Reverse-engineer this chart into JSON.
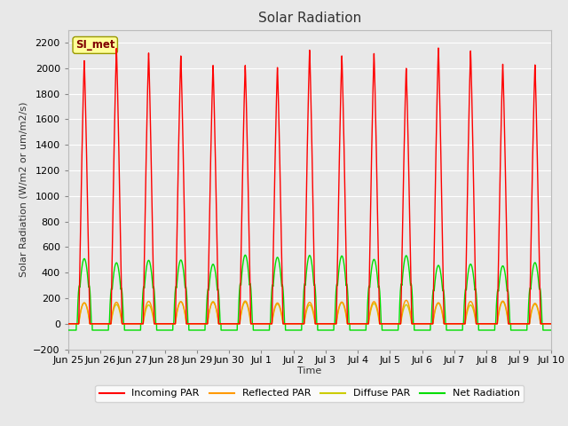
{
  "title": "Solar Radiation",
  "ylabel": "Solar Radiation (W/m2 or um/m2/s)",
  "xlabel": "Time",
  "ylim": [
    -200,
    2300
  ],
  "yticks": [
    -200,
    0,
    200,
    400,
    600,
    800,
    1000,
    1200,
    1400,
    1600,
    1800,
    2000,
    2200
  ],
  "fig_bg_color": "#e8e8e8",
  "plot_bg_color": "#e8e8e8",
  "grid_color": "#ffffff",
  "station_label": "SI_met",
  "station_label_bg": "#ffff99",
  "station_label_border": "#999900",
  "n_days": 15,
  "colors": {
    "incoming": "#ff0000",
    "reflected": "#ff9900",
    "diffuse": "#cccc00",
    "net": "#00dd00"
  },
  "legend_labels": [
    "Incoming PAR",
    "Reflected PAR",
    "Diffuse PAR",
    "Net Radiation"
  ],
  "xtick_labels": [
    "Jun 25",
    "Jun 26",
    "Jun 27",
    "Jun 28",
    "Jun 29",
    "Jun 30",
    "Jul 1",
    "Jul 2",
    "Jul 3",
    "Jul 4",
    "Jul 5",
    "Jul 6",
    "Jul 7",
    "Jul 8",
    "Jul 9",
    "Jul 10"
  ],
  "incoming_peak": 2100,
  "reflected_peak": 180,
  "diffuse_peak": 165,
  "net_peak": 600,
  "net_night": -50,
  "line_width": 1.0,
  "pts_per_day": 288
}
